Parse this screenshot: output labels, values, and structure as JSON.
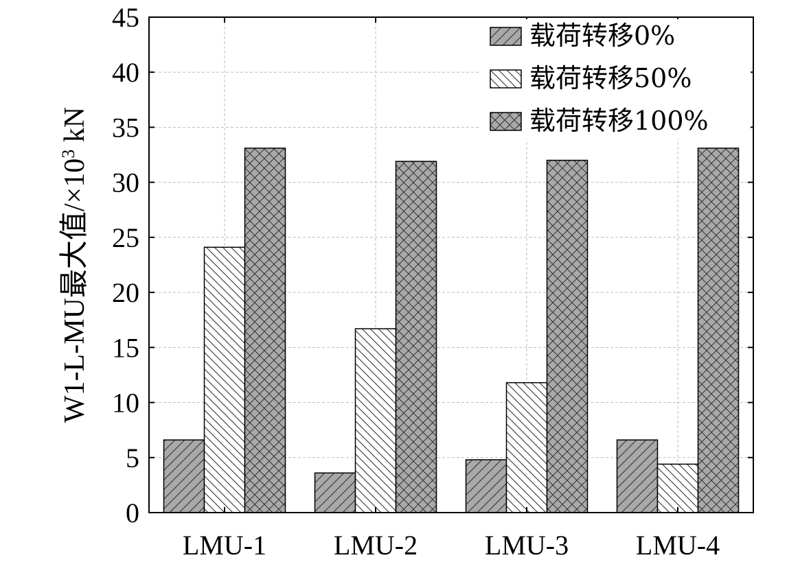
{
  "chart_data": {
    "type": "bar",
    "categories": [
      "LMU-1",
      "LMU-2",
      "LMU-3",
      "LMU-4"
    ],
    "series": [
      {
        "name": "载荷转移0%",
        "values": [
          6.6,
          3.6,
          4.8,
          6.6
        ],
        "color": "#a9a9a9",
        "pattern": "diagonal-forward"
      },
      {
        "name": "载荷转移50%",
        "values": [
          24.1,
          16.7,
          11.8,
          4.4
        ],
        "color": "#ffffff",
        "pattern": "diagonal-back"
      },
      {
        "name": "载荷转移100%",
        "values": [
          33.1,
          31.9,
          32.0,
          33.1
        ],
        "color": "#a9a9a9",
        "pattern": "crosshatch"
      }
    ],
    "ylabel": "W1-L-MU最大值/×10³ kN",
    "ylabel_main": "W1-L-MU最大值/×10",
    "ylabel_sup": "3",
    "ylabel_unit": " kN",
    "ylim": [
      0,
      45
    ],
    "yticks": [
      0,
      5,
      10,
      15,
      20,
      25,
      30,
      35,
      40,
      45
    ],
    "grid": true,
    "legend_position": "top-right"
  }
}
